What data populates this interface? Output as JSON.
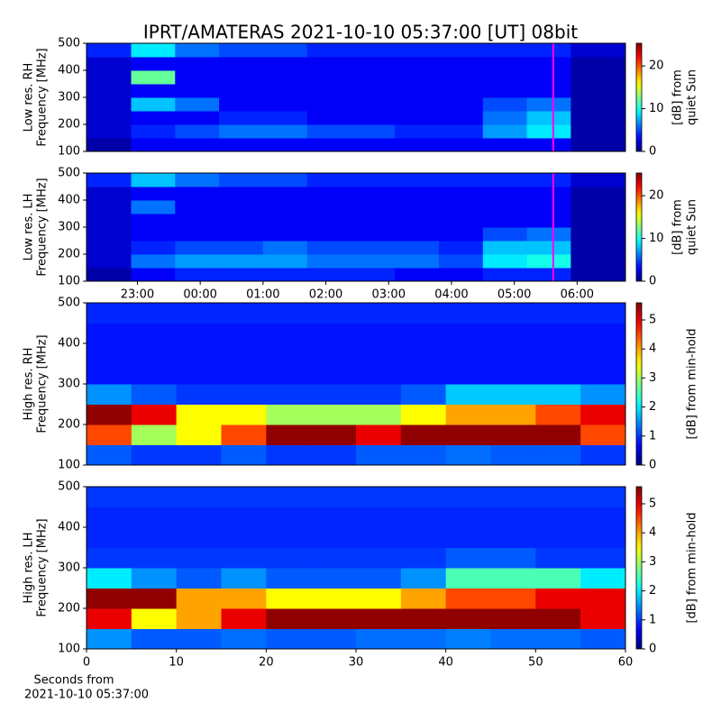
{
  "chart_data": [
    {
      "type": "heatmap",
      "title": "IPRT/AMATERAS 2021-10-10 05:37:00 [UT]   08bit",
      "ylabel": [
        "Low res. RH",
        "Frequency [MHz]"
      ],
      "xlim": [
        22.19,
        30.77
      ],
      "ylim": [
        100,
        500
      ],
      "yticks": [
        100,
        200,
        300,
        400,
        500
      ],
      "xbins": [
        22.19,
        22.9,
        23.6,
        24.3,
        25,
        25.7,
        26.4,
        27.1,
        27.8,
        28.5,
        29.2,
        29.9,
        30.77
      ],
      "ybins": [
        100,
        150,
        200,
        250,
        300,
        350,
        400,
        450,
        500
      ],
      "z": [
        [
          1,
          3,
          3,
          3,
          3,
          3,
          3,
          3,
          3,
          3,
          3,
          1
        ],
        [
          2,
          4,
          5,
          6,
          6,
          5,
          5,
          4,
          4,
          7,
          9,
          1
        ],
        [
          2,
          3,
          3,
          4,
          4,
          3,
          3,
          3,
          3,
          6,
          8,
          1
        ],
        [
          2,
          8,
          6,
          3,
          3,
          3,
          3,
          3,
          3,
          5,
          6,
          1
        ],
        [
          2,
          3,
          3,
          3,
          3,
          3,
          3,
          3,
          3,
          3,
          3,
          1
        ],
        [
          2,
          12,
          3,
          3,
          3,
          3,
          3,
          3,
          3,
          3,
          3,
          1
        ],
        [
          2,
          3,
          3,
          3,
          3,
          3,
          3,
          3,
          3,
          3,
          3,
          1
        ],
        [
          4,
          9,
          6,
          5,
          5,
          4,
          4,
          4,
          4,
          4,
          4,
          2
        ]
      ],
      "colormap": "jet",
      "clim": [
        0,
        25.3
      ],
      "cticks": [
        0,
        10,
        20
      ],
      "clabel": [
        "[dB] from",
        "quiet Sun"
      ],
      "vline": 29.62,
      "vline_color": "#ff00ff"
    },
    {
      "type": "heatmap",
      "ylabel": [
        "Low res. LH",
        "Frequency [MHz]"
      ],
      "xlim": [
        22.19,
        30.77
      ],
      "ylim": [
        100,
        500
      ],
      "yticks": [
        100,
        200,
        300,
        400,
        500
      ],
      "xticks": [
        {
          "value": 23,
          "label": "23:00"
        },
        {
          "value": 24,
          "label": "00:00"
        },
        {
          "value": 25,
          "label": "01:00"
        },
        {
          "value": 26,
          "label": "02:00"
        },
        {
          "value": 27,
          "label": "03:00"
        },
        {
          "value": 28,
          "label": "04:00"
        },
        {
          "value": 29,
          "label": "05:00"
        },
        {
          "value": 30,
          "label": "06:00"
        }
      ],
      "xbins": [
        22.19,
        22.9,
        23.6,
        24.3,
        25,
        25.7,
        26.4,
        27.1,
        27.8,
        28.5,
        29.2,
        29.9,
        30.77
      ],
      "ybins": [
        100,
        150,
        200,
        250,
        300,
        350,
        400,
        450,
        500
      ],
      "z": [
        [
          1,
          3,
          4,
          4,
          4,
          4,
          4,
          3,
          3,
          4,
          4,
          1
        ],
        [
          2,
          6,
          7,
          7,
          7,
          6,
          6,
          6,
          5,
          9,
          10,
          1
        ],
        [
          2,
          4,
          5,
          5,
          6,
          5,
          5,
          5,
          4,
          8,
          8,
          1
        ],
        [
          2,
          3,
          3,
          3,
          3,
          3,
          3,
          3,
          3,
          5,
          6,
          1
        ],
        [
          2,
          3,
          3,
          3,
          3,
          3,
          3,
          3,
          3,
          3,
          3,
          1
        ],
        [
          2,
          6,
          3,
          3,
          3,
          3,
          3,
          3,
          3,
          3,
          3,
          1
        ],
        [
          2,
          3,
          3,
          3,
          3,
          3,
          3,
          3,
          3,
          3,
          3,
          1
        ],
        [
          4,
          8,
          6,
          5,
          5,
          4,
          4,
          4,
          4,
          4,
          4,
          2
        ]
      ],
      "colormap": "jet",
      "clim": [
        0,
        25.3
      ],
      "cticks": [
        0,
        10,
        20
      ],
      "clabel": [
        "[dB] from",
        "quiet Sun"
      ],
      "vline": 29.62,
      "vline_color": "#ff00ff"
    },
    {
      "type": "heatmap",
      "ylabel": [
        "High res. RH",
        "Frequency [MHz]"
      ],
      "xlim": [
        0,
        60
      ],
      "ylim": [
        100,
        500
      ],
      "yticks": [
        100,
        200,
        300,
        400,
        500
      ],
      "xbins": [
        0,
        5,
        10,
        15,
        20,
        25,
        30,
        35,
        40,
        45,
        50,
        55,
        60
      ],
      "ybins": [
        100,
        150,
        200,
        250,
        300,
        350,
        400,
        450,
        500
      ],
      "z": [
        [
          1.2,
          1,
          1,
          1.2,
          1,
          1,
          1.2,
          1.2,
          1.3,
          1.2,
          1.2,
          1
        ],
        [
          4.5,
          3,
          3.5,
          4.5,
          5.5,
          5.5,
          5,
          5.5,
          5.5,
          5.5,
          5.5,
          4.5
        ],
        [
          5.5,
          5,
          3.5,
          3.5,
          3,
          3,
          3,
          3.5,
          4,
          4,
          4.5,
          5
        ],
        [
          1.5,
          1.2,
          1,
          1,
          1,
          1,
          1,
          1.2,
          1.8,
          1.8,
          1.8,
          1.5
        ],
        [
          0.8,
          0.8,
          0.8,
          0.8,
          0.8,
          0.8,
          0.8,
          0.8,
          0.8,
          0.8,
          0.8,
          0.8
        ],
        [
          0.8,
          0.8,
          0.8,
          0.8,
          0.8,
          0.8,
          0.8,
          0.8,
          0.8,
          0.8,
          0.8,
          0.8
        ],
        [
          0.8,
          0.8,
          0.8,
          0.8,
          0.8,
          0.8,
          0.8,
          0.8,
          0.8,
          0.8,
          0.8,
          0.8
        ],
        [
          0.9,
          0.9,
          0.9,
          0.9,
          0.9,
          0.9,
          0.9,
          0.9,
          0.9,
          0.9,
          0.9,
          0.9
        ]
      ],
      "colormap": "jet",
      "clim": [
        0,
        5.59
      ],
      "cticks": [
        0,
        1,
        2,
        3,
        4,
        5
      ],
      "clabel": [
        "[dB] from min-hold"
      ]
    },
    {
      "type": "heatmap",
      "ylabel": [
        "High res. LH",
        "Frequency [MHz]"
      ],
      "xlim": [
        0,
        60
      ],
      "ylim": [
        100,
        500
      ],
      "yticks": [
        100,
        200,
        300,
        400,
        500
      ],
      "xticks": [
        0,
        10,
        20,
        30,
        40,
        50,
        60
      ],
      "xlabel": [
        "Seconds from",
        "2021-10-10 05:37:00"
      ],
      "xbins": [
        0,
        5,
        10,
        15,
        20,
        25,
        30,
        35,
        40,
        45,
        50,
        55,
        60
      ],
      "ybins": [
        100,
        150,
        200,
        250,
        300,
        350,
        400,
        450,
        500
      ],
      "z": [
        [
          1.5,
          1.2,
          1.2,
          1.3,
          1.2,
          1.2,
          1.3,
          1.3,
          1.4,
          1.3,
          1.3,
          1.2
        ],
        [
          5,
          3.5,
          4,
          5,
          5.5,
          5.5,
          5.5,
          5.5,
          5.5,
          5.5,
          5.5,
          5
        ],
        [
          5.5,
          5.5,
          4,
          4,
          3.5,
          3.5,
          3.5,
          4,
          4.5,
          4.5,
          5,
          5
        ],
        [
          2,
          1.5,
          1.2,
          1.5,
          1.2,
          1.2,
          1.2,
          1.5,
          2.5,
          2.5,
          2.5,
          2
        ],
        [
          1,
          1,
          1,
          1,
          1,
          1,
          1,
          1,
          1.2,
          1.2,
          1,
          1
        ],
        [
          0.9,
          0.9,
          0.9,
          0.9,
          0.9,
          0.9,
          0.9,
          0.9,
          0.9,
          0.9,
          0.9,
          0.9
        ],
        [
          0.9,
          0.9,
          0.9,
          0.9,
          0.9,
          0.9,
          0.9,
          0.9,
          0.9,
          0.9,
          0.9,
          0.9
        ],
        [
          1,
          1,
          1,
          1,
          1,
          1,
          1,
          1,
          1,
          1,
          1,
          1
        ]
      ],
      "colormap": "jet",
      "clim": [
        0,
        5.59
      ],
      "cticks": [
        0,
        1,
        2,
        3,
        4,
        5
      ],
      "clabel": [
        "[dB] from min-hold"
      ]
    }
  ]
}
